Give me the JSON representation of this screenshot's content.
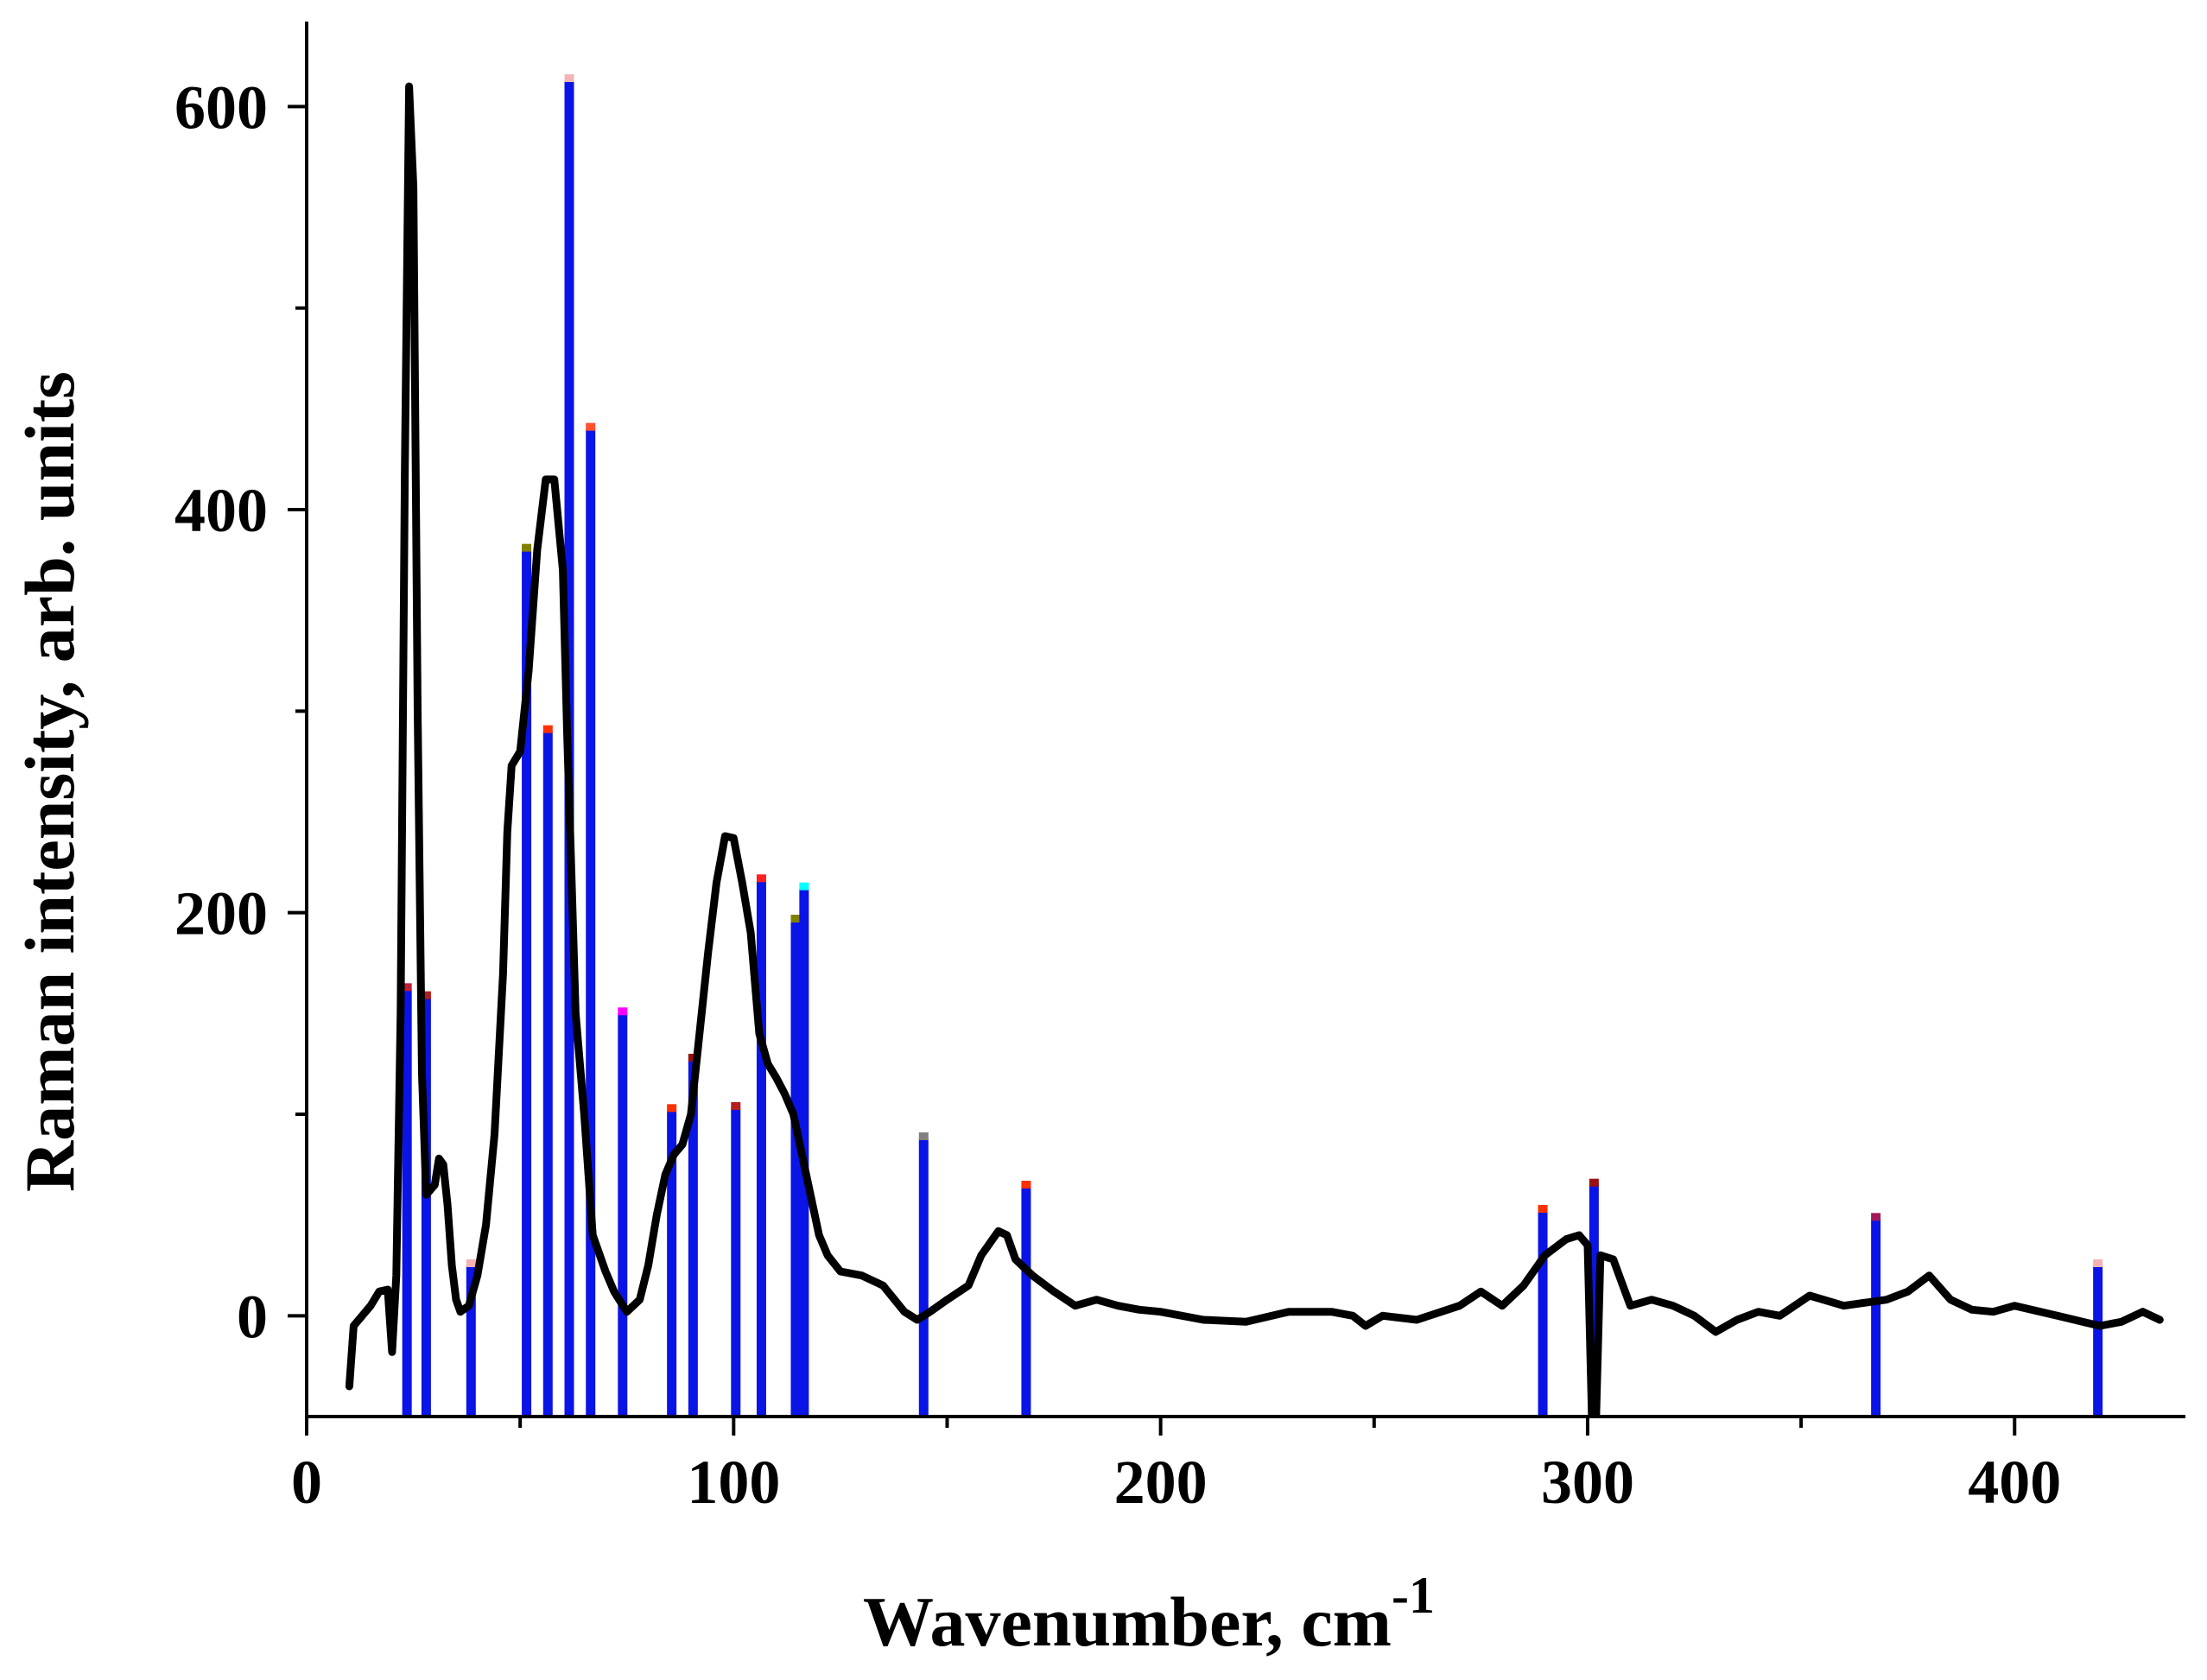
{
  "chart_data": {
    "type": "line",
    "xlabel": "Wavenumber, cm",
    "xlabel_superscript": "-1",
    "ylabel": "Raman intensity, arb. units",
    "xlim": [
      0,
      440
    ],
    "ylim": [
      -50,
      640
    ],
    "x_ticks": [
      0,
      100,
      200,
      300,
      400
    ],
    "x_tick_labels": [
      "0",
      "100",
      "200",
      "300",
      "400"
    ],
    "y_ticks": [
      0,
      200,
      400,
      600
    ],
    "y_tick_labels": [
      "0",
      "200",
      "400",
      "600"
    ],
    "grid": false,
    "legend": "none",
    "series": [
      {
        "style": "line",
        "color": "#000000",
        "points": [
          [
            10,
            -35
          ],
          [
            11,
            -5
          ],
          [
            13,
            0
          ],
          [
            15,
            5
          ],
          [
            17,
            12
          ],
          [
            19,
            13
          ],
          [
            20,
            -18
          ],
          [
            21,
            20
          ],
          [
            22,
            150
          ],
          [
            23,
            420
          ],
          [
            24,
            610
          ],
          [
            25,
            560
          ],
          [
            26,
            300
          ],
          [
            27,
            120
          ],
          [
            28,
            60
          ],
          [
            30,
            65
          ],
          [
            31,
            78
          ],
          [
            32,
            75
          ],
          [
            33,
            55
          ],
          [
            34,
            25
          ],
          [
            35,
            8
          ],
          [
            36,
            2
          ],
          [
            38,
            5
          ],
          [
            40,
            20
          ],
          [
            42,
            45
          ],
          [
            44,
            90
          ],
          [
            46,
            170
          ],
          [
            47,
            240
          ],
          [
            48,
            273
          ],
          [
            50,
            280
          ],
          [
            52,
            320
          ],
          [
            54,
            380
          ],
          [
            56,
            415
          ],
          [
            58,
            415
          ],
          [
            60,
            370
          ],
          [
            61,
            290
          ],
          [
            62,
            220
          ],
          [
            63,
            150
          ],
          [
            65,
            100
          ],
          [
            67,
            40
          ],
          [
            70,
            22
          ],
          [
            72,
            12
          ],
          [
            75,
            2
          ],
          [
            78,
            8
          ],
          [
            80,
            25
          ],
          [
            82,
            50
          ],
          [
            84,
            70
          ],
          [
            86,
            80
          ],
          [
            88,
            85
          ],
          [
            90,
            100
          ],
          [
            92,
            140
          ],
          [
            94,
            180
          ],
          [
            96,
            215
          ],
          [
            98,
            238
          ],
          [
            100,
            237
          ],
          [
            102,
            215
          ],
          [
            104,
            190
          ],
          [
            106,
            140
          ],
          [
            108,
            125
          ],
          [
            110,
            118
          ],
          [
            112,
            110
          ],
          [
            114,
            100
          ],
          [
            116,
            80
          ],
          [
            118,
            60
          ],
          [
            120,
            40
          ],
          [
            122,
            30
          ],
          [
            125,
            22
          ],
          [
            130,
            20
          ],
          [
            135,
            15
          ],
          [
            140,
            2
          ],
          [
            143,
            -2
          ],
          [
            146,
            2
          ],
          [
            150,
            8
          ],
          [
            155,
            15
          ],
          [
            158,
            30
          ],
          [
            162,
            42
          ],
          [
            164,
            40
          ],
          [
            166,
            28
          ],
          [
            170,
            20
          ],
          [
            175,
            12
          ],
          [
            180,
            5
          ],
          [
            185,
            8
          ],
          [
            190,
            5
          ],
          [
            195,
            3
          ],
          [
            200,
            2
          ],
          [
            210,
            -2
          ],
          [
            220,
            -3
          ],
          [
            230,
            2
          ],
          [
            240,
            2
          ],
          [
            245,
            0
          ],
          [
            248,
            -5
          ],
          [
            252,
            0
          ],
          [
            260,
            -2
          ],
          [
            270,
            5
          ],
          [
            275,
            12
          ],
          [
            280,
            5
          ],
          [
            285,
            15
          ],
          [
            290,
            30
          ],
          [
            295,
            38
          ],
          [
            298,
            40
          ],
          [
            300,
            35
          ],
          [
            301,
            -50
          ],
          [
            302,
            -50
          ],
          [
            303,
            30
          ],
          [
            306,
            28
          ],
          [
            310,
            5
          ],
          [
            315,
            8
          ],
          [
            320,
            5
          ],
          [
            325,
            0
          ],
          [
            330,
            -8
          ],
          [
            335,
            -2
          ],
          [
            340,
            2
          ],
          [
            345,
            0
          ],
          [
            352,
            10
          ],
          [
            360,
            5
          ],
          [
            370,
            8
          ],
          [
            375,
            12
          ],
          [
            380,
            20
          ],
          [
            385,
            8
          ],
          [
            390,
            3
          ],
          [
            395,
            2
          ],
          [
            400,
            5
          ],
          [
            410,
            0
          ],
          [
            420,
            -5
          ],
          [
            425,
            -3
          ],
          [
            430,
            2
          ],
          [
            434,
            -2
          ]
        ]
      },
      {
        "style": "stick",
        "color": "#0a14e6",
        "sticks": [
          {
            "x": 23.5,
            "y": 162,
            "cap": "#c0203a"
          },
          {
            "x": 28,
            "y": 158,
            "cap": "#b41e1e"
          },
          {
            "x": 38.5,
            "y": 25,
            "cap": "#f4b4b4"
          },
          {
            "x": 51.5,
            "y": 380,
            "cap": "#808000"
          },
          {
            "x": 56.5,
            "y": 290,
            "cap": "#ff3000"
          },
          {
            "x": 61.5,
            "y": 613,
            "cap": "#f4b4b4"
          },
          {
            "x": 66.5,
            "y": 440,
            "cap": "#ff5030"
          },
          {
            "x": 74,
            "y": 150,
            "cap": "#ff00ff"
          },
          {
            "x": 85.5,
            "y": 102,
            "cap": "#ff3000"
          },
          {
            "x": 90.5,
            "y": 127,
            "cap": "#9a1010"
          },
          {
            "x": 100.5,
            "y": 103,
            "cap": "#b41e1e"
          },
          {
            "x": 106.5,
            "y": 216,
            "cap": "#ff2020"
          },
          {
            "x": 114.5,
            "y": 196,
            "cap": "#808000"
          },
          {
            "x": 116.5,
            "y": 212,
            "cap": "#00ffff"
          },
          {
            "x": 144.5,
            "y": 88,
            "cap": "#808080"
          },
          {
            "x": 168.5,
            "y": 64,
            "cap": "#ff3000"
          },
          {
            "x": 289.5,
            "y": 52,
            "cap": "#ff3000"
          },
          {
            "x": 301.5,
            "y": 65,
            "cap": "#9a1010"
          },
          {
            "x": 367.5,
            "y": 48,
            "cap": "#a01a5a"
          },
          {
            "x": 419.5,
            "y": 25,
            "cap": "#f4b4b4"
          }
        ]
      }
    ]
  }
}
